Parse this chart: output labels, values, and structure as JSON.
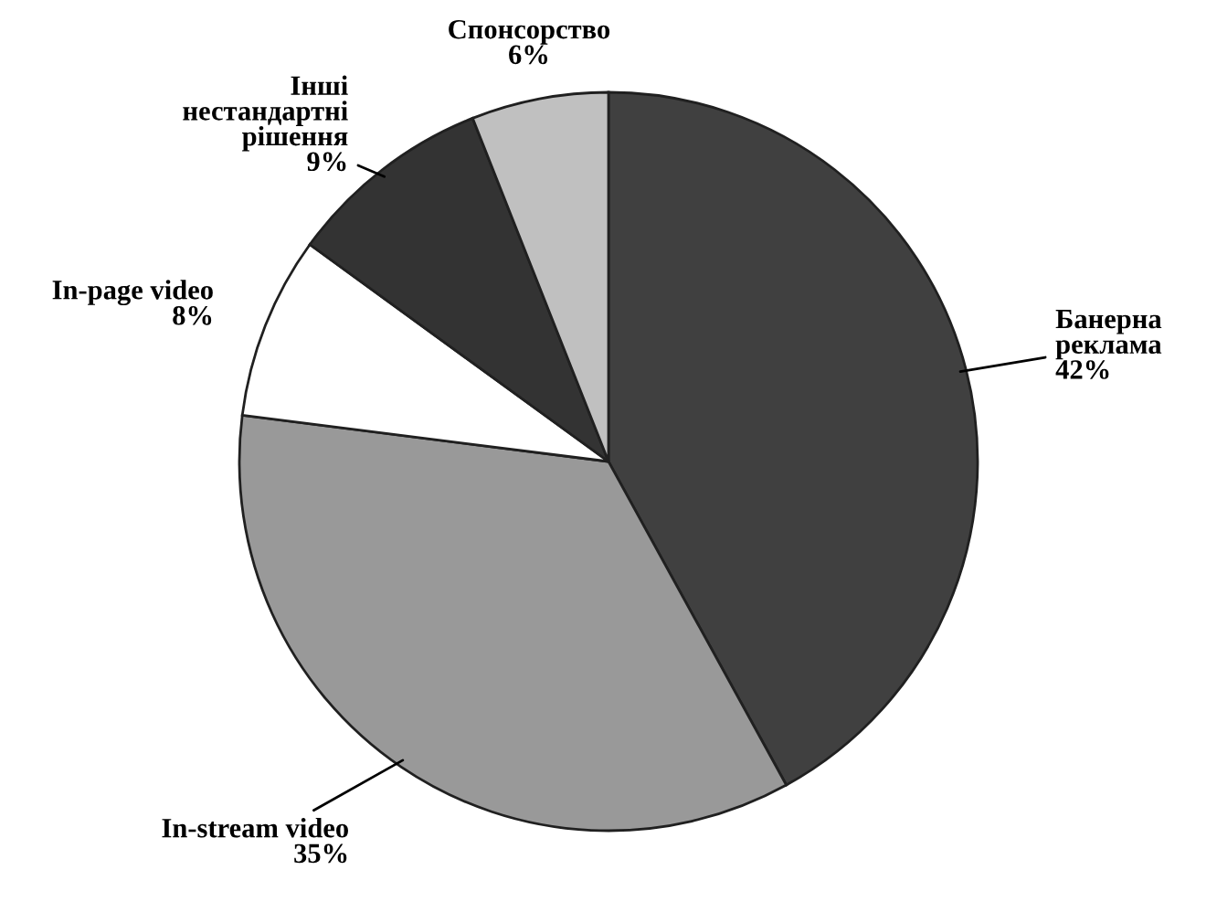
{
  "chart_data": {
    "type": "pie",
    "categories": [
      "Банерна\nреклама",
      "In-stream video",
      "In-page video",
      "Інші\nнестандартні\nрішення",
      "Спонсорство"
    ],
    "values": [
      42,
      35,
      8,
      9,
      6
    ],
    "colors": [
      "#404040",
      "#999999",
      "#ffffff",
      "#333333",
      "#c0c0c0"
    ],
    "value_labels": [
      "42%",
      "35%",
      "8%",
      "9%",
      "6%"
    ]
  }
}
